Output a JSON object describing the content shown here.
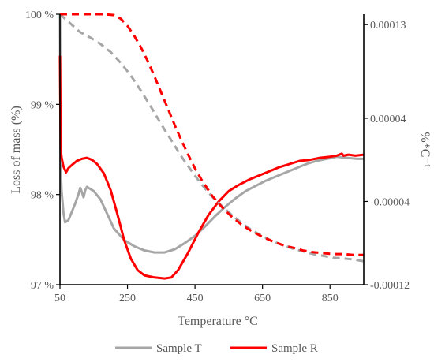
{
  "chart_data": {
    "type": "line",
    "xlabel": "Temperature °C",
    "ylabel_left": "Loss of mass (%)",
    "ylabel_right": "%*C⁻¹",
    "xlim": [
      50,
      950
    ],
    "ylim_left": [
      97,
      100
    ],
    "ylim_right": [
      -0.00012,
      0.00014
    ],
    "x_ticks": [
      50,
      250,
      450,
      650,
      850
    ],
    "y_ticks_left": [
      {
        "value": 97,
        "label": "97 %"
      },
      {
        "value": 98,
        "label": "98 %"
      },
      {
        "value": 99,
        "label": "99 %"
      },
      {
        "value": 100,
        "label": "100 %"
      }
    ],
    "y_ticks_right": [
      {
        "value": -0.00012,
        "label": "-0.00012"
      },
      {
        "value": -4e-05,
        "label": "-0.00004"
      },
      {
        "value": 4e-05,
        "label": "0.00004"
      },
      {
        "value": 0.00013,
        "label": "0.00013"
      }
    ],
    "legend_position": "bottom",
    "grid": false,
    "series": [
      {
        "name": "Sample T",
        "color": "#a6a6a6",
        "axis": "left",
        "style": "dashed",
        "points": [
          [
            50,
            100
          ],
          [
            80,
            99.9
          ],
          [
            110,
            99.8
          ],
          [
            140,
            99.74
          ],
          [
            170,
            99.67
          ],
          [
            200,
            99.58
          ],
          [
            230,
            99.46
          ],
          [
            260,
            99.32
          ],
          [
            290,
            99.15
          ],
          [
            320,
            98.97
          ],
          [
            350,
            98.78
          ],
          [
            380,
            98.6
          ],
          [
            410,
            98.42
          ],
          [
            440,
            98.26
          ],
          [
            470,
            98.11
          ],
          [
            500,
            97.98
          ],
          [
            530,
            97.87
          ],
          [
            560,
            97.77
          ],
          [
            590,
            97.68
          ],
          [
            620,
            97.6
          ],
          [
            650,
            97.54
          ],
          [
            680,
            97.48
          ],
          [
            710,
            97.44
          ],
          [
            740,
            97.4
          ],
          [
            770,
            97.37
          ],
          [
            800,
            97.34
          ],
          [
            830,
            97.32
          ],
          [
            860,
            97.3
          ],
          [
            890,
            97.29
          ],
          [
            920,
            97.28
          ],
          [
            950,
            97.26
          ]
        ]
      },
      {
        "name": "Sample R",
        "color": "#ff0000",
        "axis": "left",
        "style": "dashed",
        "points": [
          [
            50,
            100
          ],
          [
            100,
            100
          ],
          [
            140,
            100
          ],
          [
            180,
            100
          ],
          [
            210,
            99.99
          ],
          [
            230,
            99.95
          ],
          [
            250,
            99.87
          ],
          [
            270,
            99.76
          ],
          [
            290,
            99.63
          ],
          [
            310,
            99.48
          ],
          [
            330,
            99.31
          ],
          [
            350,
            99.13
          ],
          [
            370,
            98.95
          ],
          [
            390,
            98.77
          ],
          [
            410,
            98.6
          ],
          [
            430,
            98.44
          ],
          [
            450,
            98.29
          ],
          [
            470,
            98.16
          ],
          [
            500,
            97.99
          ],
          [
            530,
            97.86
          ],
          [
            560,
            97.75
          ],
          [
            590,
            97.66
          ],
          [
            620,
            97.59
          ],
          [
            650,
            97.53
          ],
          [
            680,
            97.48
          ],
          [
            710,
            97.44
          ],
          [
            740,
            97.41
          ],
          [
            770,
            97.38
          ],
          [
            800,
            97.36
          ],
          [
            830,
            97.35
          ],
          [
            860,
            97.34
          ],
          [
            890,
            97.34
          ],
          [
            920,
            97.33
          ],
          [
            950,
            97.33
          ]
        ]
      },
      {
        "name": "Sample T",
        "color": "#a6a6a6",
        "axis": "right",
        "style": "solid",
        "points": [
          [
            50,
            0.00022
          ],
          [
            52,
            -1e-05
          ],
          [
            55,
            -3e-05
          ],
          [
            60,
            -5e-05
          ],
          [
            65,
            -6e-05
          ],
          [
            75,
            -5.8e-05
          ],
          [
            85,
            -5e-05
          ],
          [
            95,
            -4.2e-05
          ],
          [
            105,
            -3.3e-05
          ],
          [
            110,
            -2.7e-05
          ],
          [
            115,
            -3.1e-05
          ],
          [
            120,
            -3.6e-05
          ],
          [
            125,
            -2.9e-05
          ],
          [
            130,
            -2.6e-05
          ],
          [
            140,
            -2.8e-05
          ],
          [
            150,
            -3e-05
          ],
          [
            170,
            -3.8e-05
          ],
          [
            190,
            -5.2e-05
          ],
          [
            210,
            -6.6e-05
          ],
          [
            240,
            -7.7e-05
          ],
          [
            270,
            -8.3e-05
          ],
          [
            300,
            -8.7e-05
          ],
          [
            330,
            -8.9e-05
          ],
          [
            360,
            -8.9e-05
          ],
          [
            390,
            -8.6e-05
          ],
          [
            420,
            -8e-05
          ],
          [
            450,
            -7.3e-05
          ],
          [
            480,
            -6.4e-05
          ],
          [
            510,
            -5.4e-05
          ],
          [
            540,
            -4.5e-05
          ],
          [
            570,
            -3.7e-05
          ],
          [
            600,
            -3e-05
          ],
          [
            630,
            -2.5e-05
          ],
          [
            660,
            -2e-05
          ],
          [
            690,
            -1.6e-05
          ],
          [
            720,
            -1.2e-05
          ],
          [
            750,
            -8e-06
          ],
          [
            780,
            -4e-06
          ],
          [
            810,
            -1e-06
          ],
          [
            840,
            1e-06
          ],
          [
            870,
            3e-06
          ],
          [
            900,
            2e-06
          ],
          [
            930,
            1e-06
          ],
          [
            950,
            1e-06
          ]
        ]
      },
      {
        "name": "Sample R",
        "color": "#ff0000",
        "axis": "right",
        "style": "solid",
        "points": [
          [
            50,
            0.0001
          ],
          [
            52,
            1e-05
          ],
          [
            55,
            2e-06
          ],
          [
            60,
            -6e-06
          ],
          [
            68,
            -1.2e-05
          ],
          [
            75,
            -8e-06
          ],
          [
            85,
            -5e-06
          ],
          [
            100,
            -1e-06
          ],
          [
            115,
            1e-06
          ],
          [
            130,
            2e-06
          ],
          [
            145,
            0.0
          ],
          [
            160,
            -4e-06
          ],
          [
            180,
            -1.3e-05
          ],
          [
            200,
            -2.9e-05
          ],
          [
            220,
            -5.2e-05
          ],
          [
            240,
            -7.7e-05
          ],
          [
            260,
            -9.5e-05
          ],
          [
            280,
            -0.000106
          ],
          [
            300,
            -0.000111
          ],
          [
            330,
            -0.000113
          ],
          [
            360,
            -0.000114
          ],
          [
            380,
            -0.000113
          ],
          [
            400,
            -0.000106
          ],
          [
            430,
            -8.9e-05
          ],
          [
            460,
            -7e-05
          ],
          [
            490,
            -5.3e-05
          ],
          [
            520,
            -4e-05
          ],
          [
            550,
            -3e-05
          ],
          [
            580,
            -2.4e-05
          ],
          [
            610,
            -1.9e-05
          ],
          [
            640,
            -1.5e-05
          ],
          [
            670,
            -1.1e-05
          ],
          [
            700,
            -7e-06
          ],
          [
            730,
            -4e-06
          ],
          [
            760,
            -1e-06
          ],
          [
            790,
            0.0
          ],
          [
            820,
            2e-06
          ],
          [
            850,
            3e-06
          ],
          [
            870,
            4e-06
          ],
          [
            885,
            6e-06
          ],
          [
            890,
            4e-06
          ],
          [
            905,
            5e-06
          ],
          [
            925,
            4e-06
          ],
          [
            950,
            5e-06
          ]
        ]
      }
    ]
  },
  "legend": {
    "items": [
      {
        "label": "Sample T",
        "color": "#a6a6a6"
      },
      {
        "label": "Sample R",
        "color": "#ff0000"
      }
    ]
  }
}
